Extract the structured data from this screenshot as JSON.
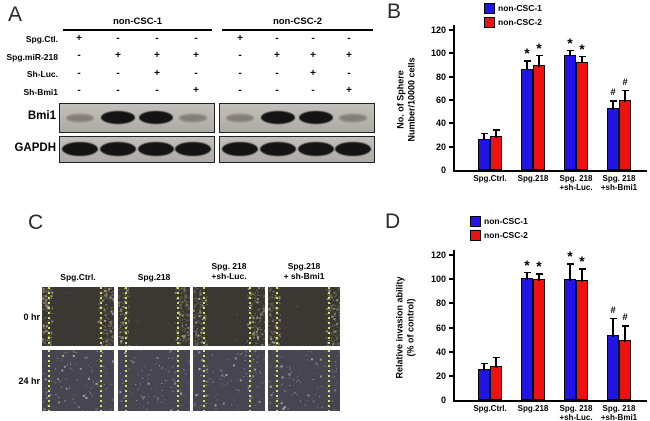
{
  "colors": {
    "series1_blue": "#2015e6",
    "series2_red": "#ee1111",
    "blot_bg": "#b9b6b2",
    "wound_line_green": "#cbe95c",
    "micrograph_0hr_bg": "#3b3834",
    "micrograph_24hr_bg": "#474550"
  },
  "panel_a": {
    "letter": "A",
    "group_headers": [
      "non-CSC-1",
      "non-CSC-2"
    ],
    "condition_rows": [
      {
        "label": "Spg.Ctl.",
        "g1": [
          "+",
          "-",
          "-",
          "-"
        ],
        "g2": [
          "+",
          "-",
          "-",
          "-"
        ]
      },
      {
        "label": "Spg.miR-218",
        "g1": [
          "-",
          "+",
          "+",
          "+"
        ],
        "g2": [
          "-",
          "+",
          "+",
          "+"
        ]
      },
      {
        "label": "Sh-Luc.",
        "g1": [
          "-",
          "-",
          "+",
          "-"
        ],
        "g2": [
          "-",
          "-",
          "+",
          "-"
        ]
      },
      {
        "label": "Sh-Bmi1",
        "g1": [
          "-",
          "-",
          "-",
          "+"
        ],
        "g2": [
          "-",
          "-",
          "-",
          "+"
        ]
      }
    ],
    "blots": [
      {
        "label": "Bmi1",
        "g1": [
          "faint",
          "strong",
          "strong",
          "faint"
        ],
        "g2": [
          "faint",
          "strong",
          "strong",
          "faint"
        ]
      },
      {
        "label": "GAPDH",
        "g1": [
          "strong",
          "strong",
          "strong",
          "strong"
        ],
        "g2": [
          "strong",
          "strong",
          "strong",
          "strong"
        ]
      }
    ]
  },
  "panel_c": {
    "letter": "C",
    "column_labels": [
      [
        "Spg.Ctrl."
      ],
      [
        "Spg.218"
      ],
      [
        "Spg. 218",
        "+sh-Luc."
      ],
      [
        "Spg.218",
        "+ sh-Bmi1"
      ]
    ],
    "row_labels": [
      "0 hr",
      "24 hr"
    ]
  },
  "chart_data": [
    {
      "panel": "B",
      "type": "bar",
      "categories": [
        [
          "Spg.Ctrl."
        ],
        [
          "Spg.218"
        ],
        [
          "Spg. 218",
          "+sh-Luc."
        ],
        [
          "Spg. 218",
          "+sh-Bmi1"
        ]
      ],
      "series": [
        {
          "name": "non-CSC-1",
          "color": "#2015e6",
          "values": [
            27,
            87,
            99,
            53
          ],
          "errors": [
            5,
            7,
            4,
            7
          ],
          "sig": [
            "",
            "*",
            "*",
            "#"
          ]
        },
        {
          "name": "non-CSC-2",
          "color": "#ee1111",
          "values": [
            29,
            90,
            93,
            60
          ],
          "errors": [
            6,
            9,
            5,
            9
          ],
          "sig": [
            "",
            "*",
            "*",
            "#"
          ]
        }
      ],
      "ylabel_lines": [
        "No. of Sphere",
        "Number/10000 cells"
      ],
      "ylim": [
        0,
        120
      ],
      "ytick_step": 20,
      "grid": false,
      "legend_position": "top"
    },
    {
      "panel": "D",
      "type": "bar",
      "categories": [
        [
          "Spg.Ctrl."
        ],
        [
          "Spg.218"
        ],
        [
          "Spg. 218",
          "+sh-Luc."
        ],
        [
          "Spg. 218",
          "+sh-Bmi1"
        ]
      ],
      "series": [
        {
          "name": "non-CSC-1",
          "color": "#2015e6",
          "values": [
            26,
            101,
            100,
            54
          ],
          "errors": [
            5,
            5,
            13,
            14
          ],
          "sig": [
            "",
            "*",
            "*",
            "#"
          ]
        },
        {
          "name": "non-CSC-2",
          "color": "#ee1111",
          "values": [
            28,
            100,
            99,
            50
          ],
          "errors": [
            8,
            5,
            10,
            12
          ],
          "sig": [
            "",
            "*",
            "*",
            "#"
          ]
        }
      ],
      "ylabel_lines": [
        "Relative invasion ability",
        "(% of control)"
      ],
      "ylim": [
        0,
        120
      ],
      "ytick_step": 20,
      "grid": false,
      "legend_position": "top"
    }
  ]
}
